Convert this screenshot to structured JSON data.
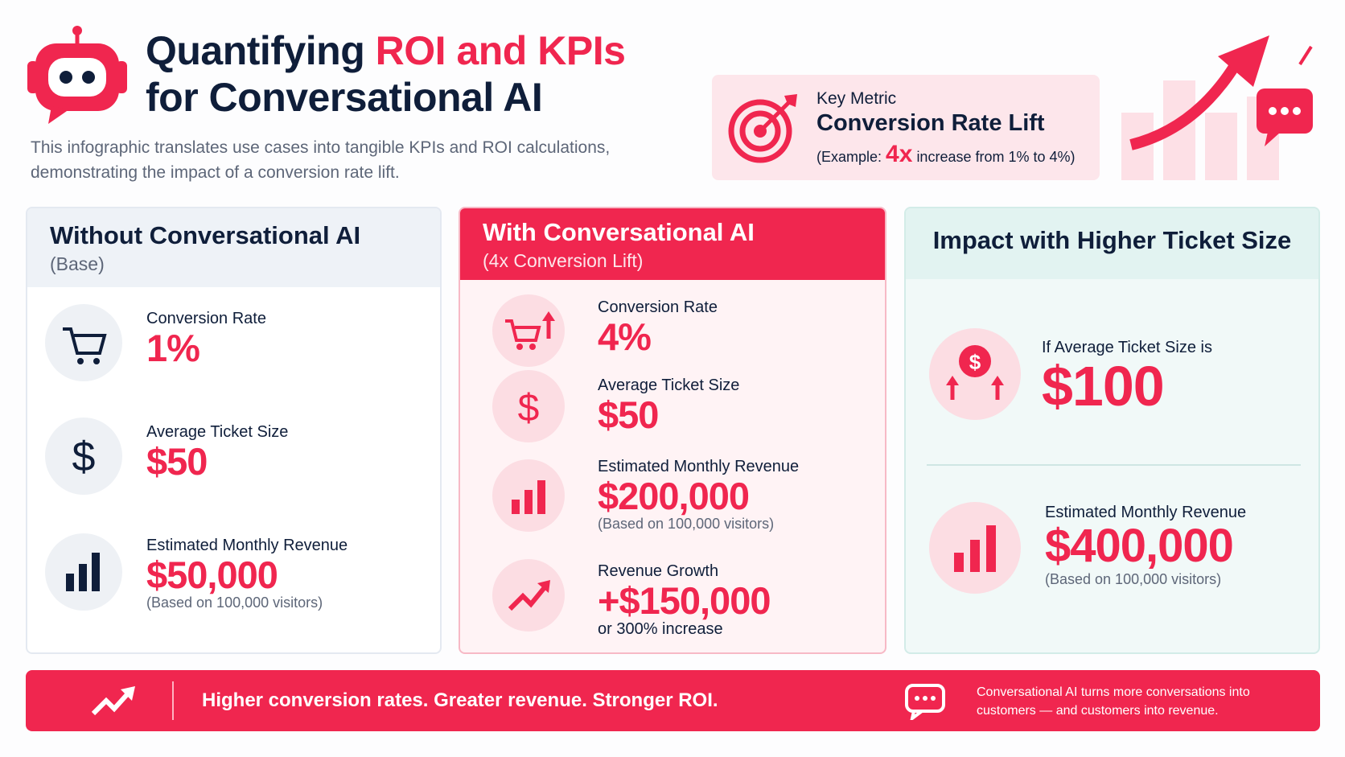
{
  "header": {
    "title_lead": "Quantifying",
    "title_highlight": "ROI and KPIs",
    "title_line2": "for Conversational AI",
    "subtitle": "This infographic translates use cases into tangible KPIs and ROI calculations, demonstrating the impact of a conversion rate lift."
  },
  "key_metric": {
    "label": "Key Metric",
    "title": "Conversion Rate Lift",
    "example_prefix": "(Example:",
    "example_highlight": "4x",
    "example_suffix": "increase from 1% to 4%)"
  },
  "panels": [
    {
      "title": "Without Conversational AI",
      "subtitle": "(Base)",
      "metrics": [
        {
          "label": "Conversion Rate",
          "value": "1%"
        },
        {
          "label": "Average Ticket Size",
          "value": "$50"
        },
        {
          "label": "Estimated Monthly Revenue",
          "value": "$50,000",
          "note": "(Based on 100,000 visitors)"
        }
      ]
    },
    {
      "title": "With Conversational AI",
      "subtitle": "(4x Conversion Lift)",
      "metrics": [
        {
          "label": "Conversion Rate",
          "value": "4%"
        },
        {
          "label": "Average Ticket Size",
          "value": "$50"
        },
        {
          "label": "Estimated Monthly Revenue",
          "value": "$200,000",
          "note": "(Based on 100,000 visitors)"
        },
        {
          "label": "Revenue Growth",
          "value": "+$150,000",
          "note": "or 300% increase"
        }
      ]
    },
    {
      "title": "Impact with Higher Ticket Size",
      "metrics": [
        {
          "label": "If Average Ticket Size is",
          "value": "$100"
        },
        {
          "label": "Estimated Monthly Revenue",
          "value": "$400,000",
          "note": "(Based on 100,000 visitors)"
        }
      ]
    }
  ],
  "footer": {
    "tagline": "Higher conversion rates. Greater revenue. Stronger ROI.",
    "note": "Conversational AI turns more conversations into customers — and customers into revenue."
  }
}
